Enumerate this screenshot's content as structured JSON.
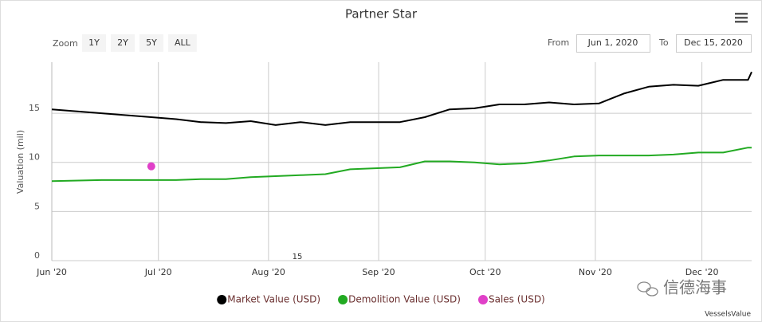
{
  "chart_data": {
    "type": "line",
    "title": "Partner Star",
    "y_label": "Valuation (mil)",
    "x": [
      "2020-06-01",
      "2020-06-15",
      "2020-06-29",
      "2020-07-06",
      "2020-07-13",
      "2020-07-20",
      "2020-07-27",
      "2020-08-03",
      "2020-08-10",
      "2020-08-17",
      "2020-08-24",
      "2020-08-31",
      "2020-09-07",
      "2020-09-14",
      "2020-09-21",
      "2020-09-28",
      "2020-10-05",
      "2020-10-12",
      "2020-10-19",
      "2020-10-26",
      "2020-11-02",
      "2020-11-09",
      "2020-11-16",
      "2020-11-23",
      "2020-11-30",
      "2020-12-07",
      "2020-12-14",
      "2020-12-15"
    ],
    "series": [
      {
        "name": "Market Value (USD)",
        "color": "#000000",
        "values": [
          15.4,
          15.0,
          14.6,
          14.4,
          14.1,
          14.0,
          14.2,
          13.8,
          14.1,
          13.8,
          14.1,
          14.1,
          14.1,
          14.6,
          15.4,
          15.5,
          15.9,
          15.9,
          16.1,
          15.9,
          16.0,
          17.0,
          17.7,
          17.9,
          17.8,
          18.4,
          18.4,
          19.2
        ]
      },
      {
        "name": "Demolition Value (USD)",
        "color": "#22aa22",
        "values": [
          8.1,
          8.2,
          8.2,
          8.2,
          8.3,
          8.3,
          8.5,
          8.6,
          8.7,
          8.8,
          9.3,
          9.4,
          9.5,
          10.1,
          10.1,
          10.0,
          9.8,
          9.9,
          10.2,
          10.6,
          10.7,
          10.7,
          10.7,
          10.8,
          11.0,
          11.0,
          11.5,
          11.5
        ]
      },
      {
        "name": "Sales (USD)",
        "color": "#e040c8",
        "marker_only": true,
        "values": [
          null,
          null,
          9.6,
          null,
          null,
          null,
          null,
          null,
          null,
          null,
          null,
          null,
          null,
          null,
          null,
          null,
          null,
          null,
          null,
          null,
          null,
          null,
          null,
          null,
          null,
          null,
          null,
          null
        ]
      }
    ],
    "xlim": [
      "2020-06-01",
      "2020-12-15"
    ],
    "xticks": [
      {
        "value": "2020-06-01",
        "label": "Jun '20"
      },
      {
        "value": "2020-07-01",
        "label": "Jul '20"
      },
      {
        "value": "2020-08-01",
        "label": "Aug '20"
      },
      {
        "value": "2020-09-01",
        "label": "Sep '20"
      },
      {
        "value": "2020-10-01",
        "label": "Oct '20"
      },
      {
        "value": "2020-11-01",
        "label": "Nov '20"
      },
      {
        "value": "2020-12-01",
        "label": "Dec '20"
      }
    ],
    "ylim": [
      0,
      20.2
    ],
    "yticks": [
      0,
      5,
      10,
      15
    ],
    "grid": true,
    "annotation": "15"
  },
  "range_selector": {
    "zoom_label": "Zoom",
    "buttons": [
      "1Y",
      "2Y",
      "5Y",
      "ALL"
    ],
    "from_label": "From",
    "from": "Jun 1, 2020",
    "to_label": "To",
    "to": "Dec 15, 2020"
  },
  "watermark": "信德海事",
  "credit": "VesselsValue"
}
